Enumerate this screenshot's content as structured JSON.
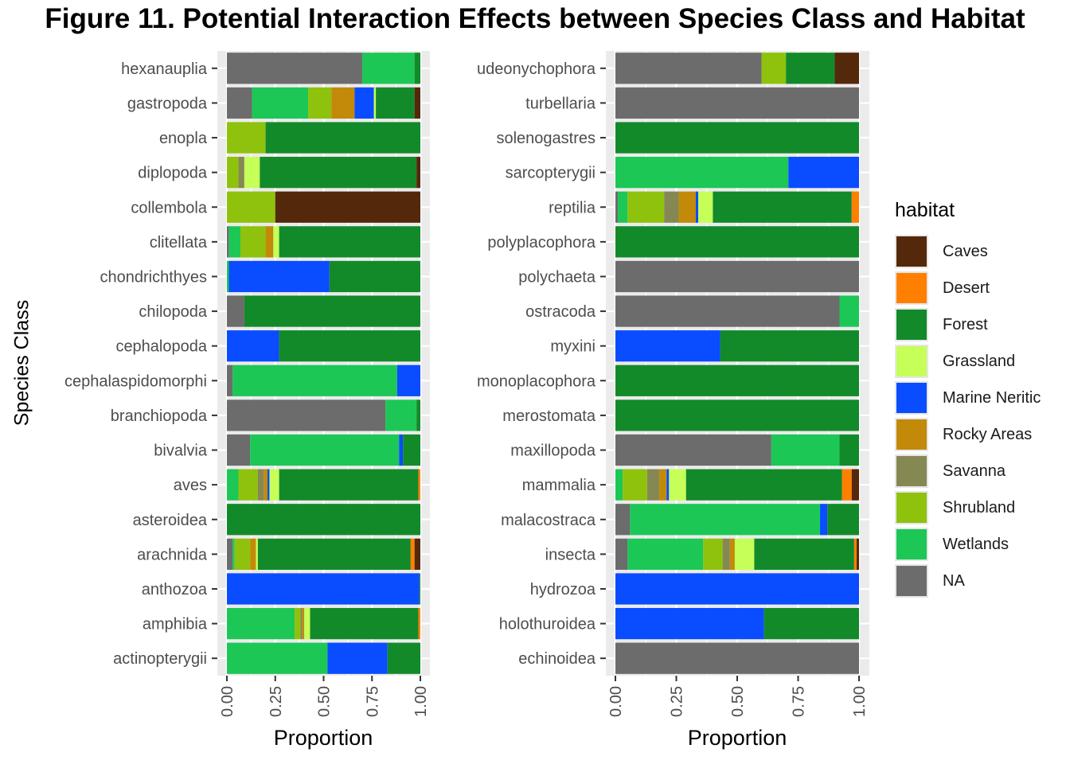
{
  "title": "Figure 11. Potential Interaction Effects between Species Class and Habitat",
  "ylabel": "Species Class",
  "legend_title": "habitat",
  "legend": [
    {
      "name": "Caves",
      "color": "#54280a"
    },
    {
      "name": "Desert",
      "color": "#ff8000"
    },
    {
      "name": "Forest",
      "color": "#138a2a"
    },
    {
      "name": "Grassland",
      "color": "#c6ff58"
    },
    {
      "name": "Marine Neritic",
      "color": "#0a4cff"
    },
    {
      "name": "Rocky Areas",
      "color": "#c28a08"
    },
    {
      "name": "Savanna",
      "color": "#868853"
    },
    {
      "name": "Shrubland",
      "color": "#8fc20c"
    },
    {
      "name": "Wetlands",
      "color": "#1cc756"
    },
    {
      "name": "NA",
      "color": "#6c6c6c"
    }
  ],
  "chart_data": [
    {
      "type": "bar",
      "orientation": "horizontal",
      "stacked": true,
      "xlabel": "Proportion",
      "ylabel": "Species Class",
      "xlim": [
        0,
        1
      ],
      "ticks": [
        "0.00",
        "0.25",
        "0.50",
        "0.75",
        "1.00"
      ],
      "categories": [
        "hexanauplia",
        "gastropoda",
        "enopla",
        "diplopoda",
        "collembola",
        "clitellata",
        "chondrichthyes",
        "chilopoda",
        "cephalopoda",
        "cephalaspidomorphi",
        "branchiopoda",
        "bivalvia",
        "aves",
        "asteroidea",
        "arachnida",
        "anthozoa",
        "amphibia",
        "actinopterygii"
      ],
      "bars": [
        [
          [
            "NA",
            0.7
          ],
          [
            "Wetlands",
            0.27
          ],
          [
            "Forest",
            0.03
          ]
        ],
        [
          [
            "NA",
            0.13
          ],
          [
            "Wetlands",
            0.29
          ],
          [
            "Shrubland",
            0.12
          ],
          [
            "Rocky Areas",
            0.12
          ],
          [
            "Marine Neritic",
            0.1
          ],
          [
            "Grassland",
            0.01
          ],
          [
            "Forest",
            0.2
          ],
          [
            "Caves",
            0.03
          ]
        ],
        [
          [
            "Shrubland",
            0.2
          ],
          [
            "Forest",
            0.8
          ]
        ],
        [
          [
            "Shrubland",
            0.06
          ],
          [
            "Savanna",
            0.03
          ],
          [
            "Grassland",
            0.08
          ],
          [
            "Forest",
            0.81
          ],
          [
            "Caves",
            0.02
          ]
        ],
        [
          [
            "Shrubland",
            0.25
          ],
          [
            "Caves",
            0.75
          ]
        ],
        [
          [
            "NA",
            0.01
          ],
          [
            "Wetlands",
            0.06
          ],
          [
            "Shrubland",
            0.13
          ],
          [
            "Rocky Areas",
            0.04
          ],
          [
            "Grassland",
            0.03
          ],
          [
            "Forest",
            0.73
          ]
        ],
        [
          [
            "Wetlands",
            0.01
          ],
          [
            "Marine Neritic",
            0.52
          ],
          [
            "Forest",
            0.47
          ]
        ],
        [
          [
            "NA",
            0.09
          ],
          [
            "Forest",
            0.91
          ]
        ],
        [
          [
            "Marine Neritic",
            0.27
          ],
          [
            "Forest",
            0.73
          ]
        ],
        [
          [
            "NA",
            0.03
          ],
          [
            "Wetlands",
            0.85
          ],
          [
            "Marine Neritic",
            0.12
          ]
        ],
        [
          [
            "NA",
            0.82
          ],
          [
            "Wetlands",
            0.16
          ],
          [
            "Forest",
            0.02
          ]
        ],
        [
          [
            "NA",
            0.12
          ],
          [
            "Wetlands",
            0.77
          ],
          [
            "Marine Neritic",
            0.02
          ],
          [
            "Forest",
            0.09
          ]
        ],
        [
          [
            "Wetlands",
            0.06
          ],
          [
            "Shrubland",
            0.1
          ],
          [
            "Savanna",
            0.03
          ],
          [
            "Rocky Areas",
            0.02
          ],
          [
            "Marine Neritic",
            0.01
          ],
          [
            "Grassland",
            0.05
          ],
          [
            "Forest",
            0.72
          ],
          [
            "Desert",
            0.01
          ]
        ],
        [
          [
            "Forest",
            1.0
          ]
        ],
        [
          [
            "NA",
            0.03
          ],
          [
            "Wetlands",
            0.01
          ],
          [
            "Shrubland",
            0.08
          ],
          [
            "Rocky Areas",
            0.03
          ],
          [
            "Grassland",
            0.01
          ],
          [
            "Forest",
            0.79
          ],
          [
            "Desert",
            0.02
          ],
          [
            "Caves",
            0.03
          ]
        ],
        [
          [
            "Marine Neritic",
            0.995
          ],
          [
            "Forest",
            0.005
          ]
        ],
        [
          [
            "Wetlands",
            0.35
          ],
          [
            "Shrubland",
            0.03
          ],
          [
            "Savanna",
            0.01
          ],
          [
            "Rocky Areas",
            0.01
          ],
          [
            "Grassland",
            0.03
          ],
          [
            "Forest",
            0.56
          ],
          [
            "Desert",
            0.01
          ]
        ],
        [
          [
            "Wetlands",
            0.52
          ],
          [
            "Marine Neritic",
            0.31
          ],
          [
            "Forest",
            0.17
          ]
        ]
      ]
    },
    {
      "type": "bar",
      "orientation": "horizontal",
      "stacked": true,
      "xlabel": "Proportion",
      "ylabel": "",
      "xlim": [
        0,
        1
      ],
      "ticks": [
        "0.00",
        "0.25",
        "0.50",
        "0.75",
        "1.00"
      ],
      "categories": [
        "udeonychophora",
        "turbellaria",
        "solenogastres",
        "sarcopterygii",
        "reptilia",
        "polyplacophora",
        "polychaeta",
        "ostracoda",
        "myxini",
        "monoplacophora",
        "merostomata",
        "maxillopoda",
        "mammalia",
        "malacostraca",
        "insecta",
        "hydrozoa",
        "holothuroidea",
        "echinoidea"
      ],
      "bars": [
        [
          [
            "NA",
            0.6
          ],
          [
            "Shrubland",
            0.1
          ],
          [
            "Forest",
            0.2
          ],
          [
            "Caves",
            0.1
          ]
        ],
        [
          [
            "NA",
            1.0
          ]
        ],
        [
          [
            "Forest",
            1.0
          ]
        ],
        [
          [
            "Wetlands",
            0.71
          ],
          [
            "Marine Neritic",
            0.29
          ]
        ],
        [
          [
            "NA",
            0.01
          ],
          [
            "Wetlands",
            0.04
          ],
          [
            "Shrubland",
            0.15
          ],
          [
            "Savanna",
            0.06
          ],
          [
            "Rocky Areas",
            0.07
          ],
          [
            "Marine Neritic",
            0.01
          ],
          [
            "Grassland",
            0.06
          ],
          [
            "Forest",
            0.57
          ],
          [
            "Desert",
            0.03
          ]
        ],
        [
          [
            "Forest",
            1.0
          ]
        ],
        [
          [
            "NA",
            1.0
          ]
        ],
        [
          [
            "NA",
            0.92
          ],
          [
            "Wetlands",
            0.08
          ]
        ],
        [
          [
            "Marine Neritic",
            0.43
          ],
          [
            "Forest",
            0.57
          ]
        ],
        [
          [
            "Forest",
            1.0
          ]
        ],
        [
          [
            "Forest",
            1.0
          ]
        ],
        [
          [
            "NA",
            0.64
          ],
          [
            "Wetlands",
            0.28
          ],
          [
            "Forest",
            0.08
          ]
        ],
        [
          [
            "Wetlands",
            0.03
          ],
          [
            "Shrubland",
            0.1
          ],
          [
            "Savanna",
            0.05
          ],
          [
            "Rocky Areas",
            0.03
          ],
          [
            "Marine Neritic",
            0.01
          ],
          [
            "Grassland",
            0.07
          ],
          [
            "Forest",
            0.64
          ],
          [
            "Desert",
            0.04
          ],
          [
            "Caves",
            0.03
          ]
        ],
        [
          [
            "NA",
            0.06
          ],
          [
            "Wetlands",
            0.78
          ],
          [
            "Marine Neritic",
            0.03
          ],
          [
            "Forest",
            0.13
          ]
        ],
        [
          [
            "NA",
            0.05
          ],
          [
            "Wetlands",
            0.31
          ],
          [
            "Shrubland",
            0.08
          ],
          [
            "Savanna",
            0.03
          ],
          [
            "Rocky Areas",
            0.02
          ],
          [
            "Grassland",
            0.08
          ],
          [
            "Forest",
            0.41
          ],
          [
            "Desert",
            0.01
          ],
          [
            "Caves",
            0.01
          ]
        ],
        [
          [
            "Marine Neritic",
            1.0
          ]
        ],
        [
          [
            "Marine Neritic",
            0.61
          ],
          [
            "Forest",
            0.39
          ]
        ],
        [
          [
            "NA",
            1.0
          ]
        ]
      ]
    }
  ]
}
